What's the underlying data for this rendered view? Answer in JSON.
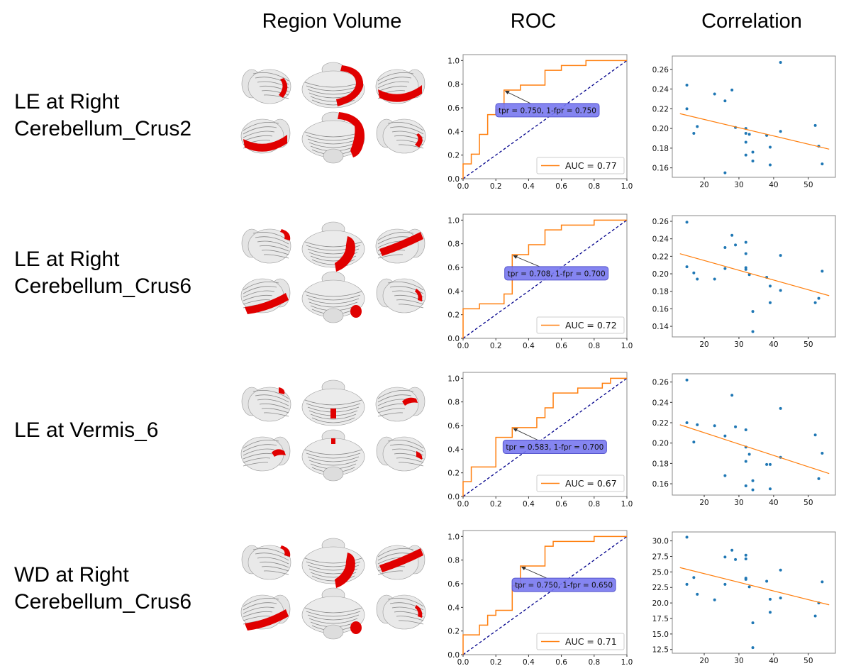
{
  "headers": {
    "region_volume": "Region Volume",
    "roc": "ROC",
    "correlation": "Correlation"
  },
  "rows": [
    {
      "label_lines": [
        "LE at Right",
        "Cerebellum_Crus2"
      ],
      "region_pattern": "crus2"
    },
    {
      "label_lines": [
        "LE at Right",
        "Cerebellum_Crus6"
      ],
      "region_pattern": "crus6"
    },
    {
      "label_lines": [
        "LE at Vermis_6"
      ],
      "region_pattern": "vermis6"
    },
    {
      "label_lines": [
        "WD at Right",
        "Cerebellum_Crus6"
      ],
      "region_pattern": "crus6"
    }
  ],
  "colors": {
    "roc_curve": "#ff7f0e",
    "chance_line": "#00008b",
    "annotation_box": "#7878f0",
    "scatter_points": "#1f77b4",
    "fit_line": "#ff7f0e",
    "highlight_region": "#e00000",
    "brain_surface": "#d8d8d8"
  },
  "chart_data": [
    {
      "type": "line",
      "panel": "ROC",
      "row": 0,
      "xlim": [
        0,
        1
      ],
      "ylim": [
        0,
        1.05
      ],
      "xticks": [
        "0.0",
        "0.2",
        "0.4",
        "0.6",
        "0.8",
        "1.0"
      ],
      "yticks": [
        "0.0",
        "0.2",
        "0.4",
        "0.6",
        "0.8",
        "1.0"
      ],
      "curve": [
        [
          0,
          0
        ],
        [
          0,
          0.125
        ],
        [
          0.05,
          0.125
        ],
        [
          0.05,
          0.208
        ],
        [
          0.1,
          0.208
        ],
        [
          0.1,
          0.375
        ],
        [
          0.15,
          0.375
        ],
        [
          0.15,
          0.542
        ],
        [
          0.2,
          0.542
        ],
        [
          0.2,
          0.583
        ],
        [
          0.25,
          0.583
        ],
        [
          0.25,
          0.75
        ],
        [
          0.35,
          0.75
        ],
        [
          0.35,
          0.792
        ],
        [
          0.5,
          0.792
        ],
        [
          0.5,
          0.917
        ],
        [
          0.6,
          0.917
        ],
        [
          0.6,
          0.958
        ],
        [
          0.75,
          0.958
        ],
        [
          0.75,
          1
        ],
        [
          1,
          1
        ]
      ],
      "chance": [
        [
          0,
          0
        ],
        [
          1,
          1
        ]
      ],
      "legend": "AUC = 0.77",
      "legend_position": "lower-right",
      "annotation": {
        "text": "tpr = 0.750, 1-fpr = 0.750",
        "point": [
          0.25,
          0.75
        ]
      }
    },
    {
      "type": "scatter",
      "panel": "Correlation",
      "row": 0,
      "xlim": [
        10.8,
        57.8
      ],
      "ylim": [
        0.1504,
        0.2735
      ],
      "xticks": [
        20,
        30,
        40,
        50
      ],
      "yticks": [
        0.16,
        0.18,
        0.2,
        0.22,
        0.24,
        0.26
      ],
      "ytick_labels": [
        "0.16",
        "0.18",
        "0.20",
        "0.22",
        "0.24",
        "0.26"
      ],
      "points": [
        [
          15,
          0.244
        ],
        [
          15,
          0.22
        ],
        [
          17,
          0.195
        ],
        [
          18,
          0.202
        ],
        [
          23,
          0.235
        ],
        [
          26,
          0.228
        ],
        [
          26,
          0.155
        ],
        [
          28,
          0.239
        ],
        [
          29,
          0.201
        ],
        [
          32,
          0.2
        ],
        [
          32,
          0.195
        ],
        [
          32,
          0.186
        ],
        [
          32,
          0.173
        ],
        [
          33,
          0.194
        ],
        [
          34,
          0.176
        ],
        [
          34,
          0.167
        ],
        [
          38,
          0.193
        ],
        [
          39,
          0.181
        ],
        [
          39,
          0.163
        ],
        [
          42,
          0.267
        ],
        [
          42,
          0.197
        ],
        [
          52,
          0.203
        ],
        [
          53,
          0.182
        ],
        [
          54,
          0.164
        ]
      ],
      "fit_line": [
        [
          13,
          0.215
        ],
        [
          56,
          0.179
        ]
      ]
    },
    {
      "type": "line",
      "panel": "ROC",
      "row": 1,
      "xlim": [
        0,
        1
      ],
      "ylim": [
        0,
        1.05
      ],
      "xticks": [
        "0.0",
        "0.2",
        "0.4",
        "0.6",
        "0.8",
        "1.0"
      ],
      "yticks": [
        "0.0",
        "0.2",
        "0.4",
        "0.6",
        "0.8",
        "1.0"
      ],
      "curve": [
        [
          0,
          0
        ],
        [
          0,
          0.25
        ],
        [
          0.1,
          0.25
        ],
        [
          0.1,
          0.292
        ],
        [
          0.25,
          0.292
        ],
        [
          0.25,
          0.375
        ],
        [
          0.3,
          0.375
        ],
        [
          0.3,
          0.708
        ],
        [
          0.4,
          0.708
        ],
        [
          0.4,
          0.792
        ],
        [
          0.5,
          0.792
        ],
        [
          0.5,
          0.917
        ],
        [
          0.6,
          0.917
        ],
        [
          0.6,
          0.958
        ],
        [
          0.8,
          0.958
        ],
        [
          0.8,
          1
        ],
        [
          1,
          1
        ]
      ],
      "chance": [
        [
          0,
          0
        ],
        [
          1,
          1
        ]
      ],
      "legend": "AUC = 0.72",
      "legend_position": "lower-right",
      "annotation": {
        "text": "tpr = 0.708, 1-fpr = 0.700",
        "point": [
          0.3,
          0.708
        ]
      }
    },
    {
      "type": "scatter",
      "panel": "Correlation",
      "row": 1,
      "xlim": [
        10.8,
        57.8
      ],
      "ylim": [
        0.1279,
        0.2665
      ],
      "xticks": [
        20,
        30,
        40,
        50
      ],
      "yticks": [
        0.14,
        0.16,
        0.18,
        0.2,
        0.22,
        0.24,
        0.26
      ],
      "ytick_labels": [
        "0.14",
        "0.16",
        "0.18",
        "0.20",
        "0.22",
        "0.24",
        "0.26"
      ],
      "points": [
        [
          15,
          0.259
        ],
        [
          15,
          0.208
        ],
        [
          17,
          0.201
        ],
        [
          18,
          0.194
        ],
        [
          23,
          0.194
        ],
        [
          26,
          0.23
        ],
        [
          26,
          0.206
        ],
        [
          28,
          0.244
        ],
        [
          29,
          0.233
        ],
        [
          32,
          0.236
        ],
        [
          32,
          0.223
        ],
        [
          32,
          0.207
        ],
        [
          32,
          0.205
        ],
        [
          33,
          0.199
        ],
        [
          34,
          0.157
        ],
        [
          34,
          0.134
        ],
        [
          38,
          0.196
        ],
        [
          39,
          0.186
        ],
        [
          39,
          0.167
        ],
        [
          42,
          0.221
        ],
        [
          42,
          0.181
        ],
        [
          52,
          0.167
        ],
        [
          53,
          0.172
        ],
        [
          54,
          0.203
        ]
      ],
      "fit_line": [
        [
          13,
          0.223
        ],
        [
          56,
          0.175
        ]
      ]
    },
    {
      "type": "line",
      "panel": "ROC",
      "row": 2,
      "xlim": [
        0,
        1
      ],
      "ylim": [
        0,
        1.05
      ],
      "xticks": [
        "0.0",
        "0.2",
        "0.4",
        "0.6",
        "0.8",
        "1.0"
      ],
      "yticks": [
        "0.0",
        "0.2",
        "0.4",
        "0.6",
        "0.8",
        "1.0"
      ],
      "curve": [
        [
          0,
          0
        ],
        [
          0,
          0.125
        ],
        [
          0.05,
          0.125
        ],
        [
          0.05,
          0.25
        ],
        [
          0.2,
          0.25
        ],
        [
          0.2,
          0.5
        ],
        [
          0.3,
          0.5
        ],
        [
          0.3,
          0.583
        ],
        [
          0.45,
          0.583
        ],
        [
          0.45,
          0.667
        ],
        [
          0.5,
          0.667
        ],
        [
          0.5,
          0.75
        ],
        [
          0.55,
          0.75
        ],
        [
          0.55,
          0.875
        ],
        [
          0.7,
          0.875
        ],
        [
          0.7,
          0.917
        ],
        [
          0.85,
          0.917
        ],
        [
          0.85,
          0.958
        ],
        [
          0.9,
          0.958
        ],
        [
          0.9,
          1
        ],
        [
          1,
          1
        ]
      ],
      "chance": [
        [
          0,
          0
        ],
        [
          1,
          1
        ]
      ],
      "legend": "AUC = 0.67",
      "legend_position": "lower-right",
      "annotation": {
        "text": "tpr = 0.583, 1-fpr = 0.700",
        "point": [
          0.3,
          0.583
        ]
      }
    },
    {
      "type": "scatter",
      "panel": "Correlation",
      "row": 2,
      "xlim": [
        10.8,
        57.8
      ],
      "ylim": [
        0.1489,
        0.2681
      ],
      "xticks": [
        20,
        30,
        40,
        50
      ],
      "yticks": [
        0.16,
        0.18,
        0.2,
        0.22,
        0.24,
        0.26
      ],
      "ytick_labels": [
        "0.16",
        "0.18",
        "0.20",
        "0.22",
        "0.24",
        "0.26"
      ],
      "points": [
        [
          15,
          0.262
        ],
        [
          15,
          0.22
        ],
        [
          17,
          0.201
        ],
        [
          18,
          0.218
        ],
        [
          23,
          0.217
        ],
        [
          26,
          0.207
        ],
        [
          26,
          0.168
        ],
        [
          28,
          0.247
        ],
        [
          29,
          0.216
        ],
        [
          32,
          0.213
        ],
        [
          32,
          0.196
        ],
        [
          32,
          0.182
        ],
        [
          32,
          0.158
        ],
        [
          33,
          0.189
        ],
        [
          34,
          0.163
        ],
        [
          34,
          0.154
        ],
        [
          38,
          0.179
        ],
        [
          39,
          0.179
        ],
        [
          39,
          0.155
        ],
        [
          42,
          0.234
        ],
        [
          42,
          0.186
        ],
        [
          52,
          0.208
        ],
        [
          53,
          0.165
        ],
        [
          54,
          0.19
        ]
      ],
      "fit_line": [
        [
          13,
          0.218
        ],
        [
          56,
          0.17
        ]
      ]
    },
    {
      "type": "line",
      "panel": "ROC",
      "row": 3,
      "xlim": [
        0,
        1
      ],
      "ylim": [
        0,
        1.05
      ],
      "xticks": [
        "0.0",
        "0.2",
        "0.4",
        "0.6",
        "0.8",
        "1.0"
      ],
      "yticks": [
        "0.0",
        "0.2",
        "0.4",
        "0.6",
        "0.8",
        "1.0"
      ],
      "curve": [
        [
          0,
          0
        ],
        [
          0,
          0.167
        ],
        [
          0.1,
          0.167
        ],
        [
          0.1,
          0.25
        ],
        [
          0.15,
          0.25
        ],
        [
          0.15,
          0.333
        ],
        [
          0.2,
          0.333
        ],
        [
          0.2,
          0.375
        ],
        [
          0.3,
          0.375
        ],
        [
          0.3,
          0.583
        ],
        [
          0.35,
          0.583
        ],
        [
          0.35,
          0.75
        ],
        [
          0.5,
          0.75
        ],
        [
          0.5,
          0.917
        ],
        [
          0.55,
          0.917
        ],
        [
          0.55,
          0.958
        ],
        [
          0.8,
          0.958
        ],
        [
          0.8,
          1
        ],
        [
          1,
          1
        ]
      ],
      "chance": [
        [
          0,
          0
        ],
        [
          1,
          1
        ]
      ],
      "legend": "AUC = 0.71",
      "legend_position": "lower-right",
      "annotation": {
        "text": "tpr = 0.750, 1-fpr = 0.650",
        "point": [
          0.35,
          0.75
        ]
      }
    },
    {
      "type": "scatter",
      "panel": "Correlation",
      "row": 3,
      "xlim": [
        10.8,
        57.8
      ],
      "ylim": [
        11.9,
        31.44
      ],
      "xticks": [
        20,
        30,
        40,
        50
      ],
      "yticks": [
        12.5,
        15,
        17.5,
        20,
        22.5,
        25,
        27.5,
        30
      ],
      "ytick_labels": [
        "12.5",
        "15.0",
        "17.5",
        "20.0",
        "22.5",
        "25.0",
        "27.5",
        "30.0"
      ],
      "points": [
        [
          15,
          30.6
        ],
        [
          15,
          23.0
        ],
        [
          17,
          24.1
        ],
        [
          18,
          21.4
        ],
        [
          23,
          20.5
        ],
        [
          26,
          27.4
        ],
        [
          26,
          23.0
        ],
        [
          28,
          28.5
        ],
        [
          29,
          27.0
        ],
        [
          32,
          27.7
        ],
        [
          32,
          27.1
        ],
        [
          32,
          24.0
        ],
        [
          32,
          23.8
        ],
        [
          33,
          22.6
        ],
        [
          34,
          16.8
        ],
        [
          34,
          12.8
        ],
        [
          38,
          23.5
        ],
        [
          39,
          20.6
        ],
        [
          39,
          18.5
        ],
        [
          42,
          25.3
        ],
        [
          42,
          20.8
        ],
        [
          52,
          17.9
        ],
        [
          53,
          20.0
        ],
        [
          54,
          23.4
        ]
      ],
      "fit_line": [
        [
          13,
          25.7
        ],
        [
          56,
          19.7
        ]
      ]
    }
  ]
}
